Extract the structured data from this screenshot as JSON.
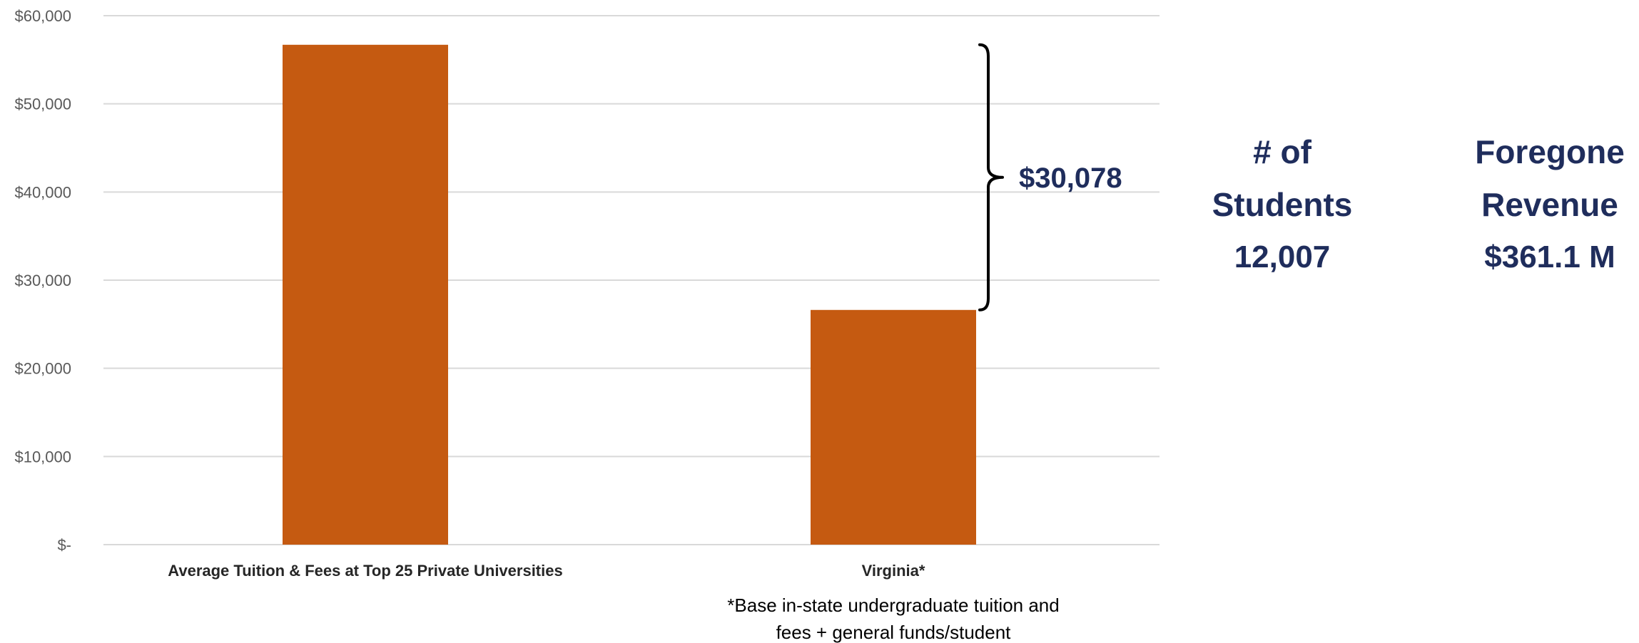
{
  "chart_data": {
    "type": "bar",
    "categories": [
      "Average Tuition & Fees at Top 25 Private Universities",
      "Virginia*"
    ],
    "values": [
      56700,
      26622
    ],
    "ylim": [
      0,
      60000
    ],
    "y_ticks": [
      0,
      10000,
      20000,
      30000,
      40000,
      50000,
      60000
    ],
    "y_tick_labels": [
      "$-",
      "$10,000",
      "$20,000",
      "$30,000",
      "$40,000",
      "$50,000",
      "$60,000"
    ],
    "grid": true,
    "bar_color": "#C55A11",
    "title": "",
    "xlabel": "",
    "ylabel": "",
    "annotations": [
      {
        "type": "brace",
        "label": "$30,078",
        "from_value": 26622,
        "to_value": 56700
      }
    ],
    "footnote": [
      "*Base in-state undergraduate tuition and",
      "fees + general funds/student"
    ]
  },
  "side_stats": [
    {
      "label_lines": [
        "# of",
        "Students"
      ],
      "value": "12,007"
    },
    {
      "label_lines": [
        "Foregone",
        "Revenue"
      ],
      "value": "$361.1 M"
    }
  ],
  "colors": {
    "bar": "#C55A11",
    "accent_text": "#1F2D5C",
    "grid": "#D9D9D9",
    "axis_text": "#595959"
  }
}
